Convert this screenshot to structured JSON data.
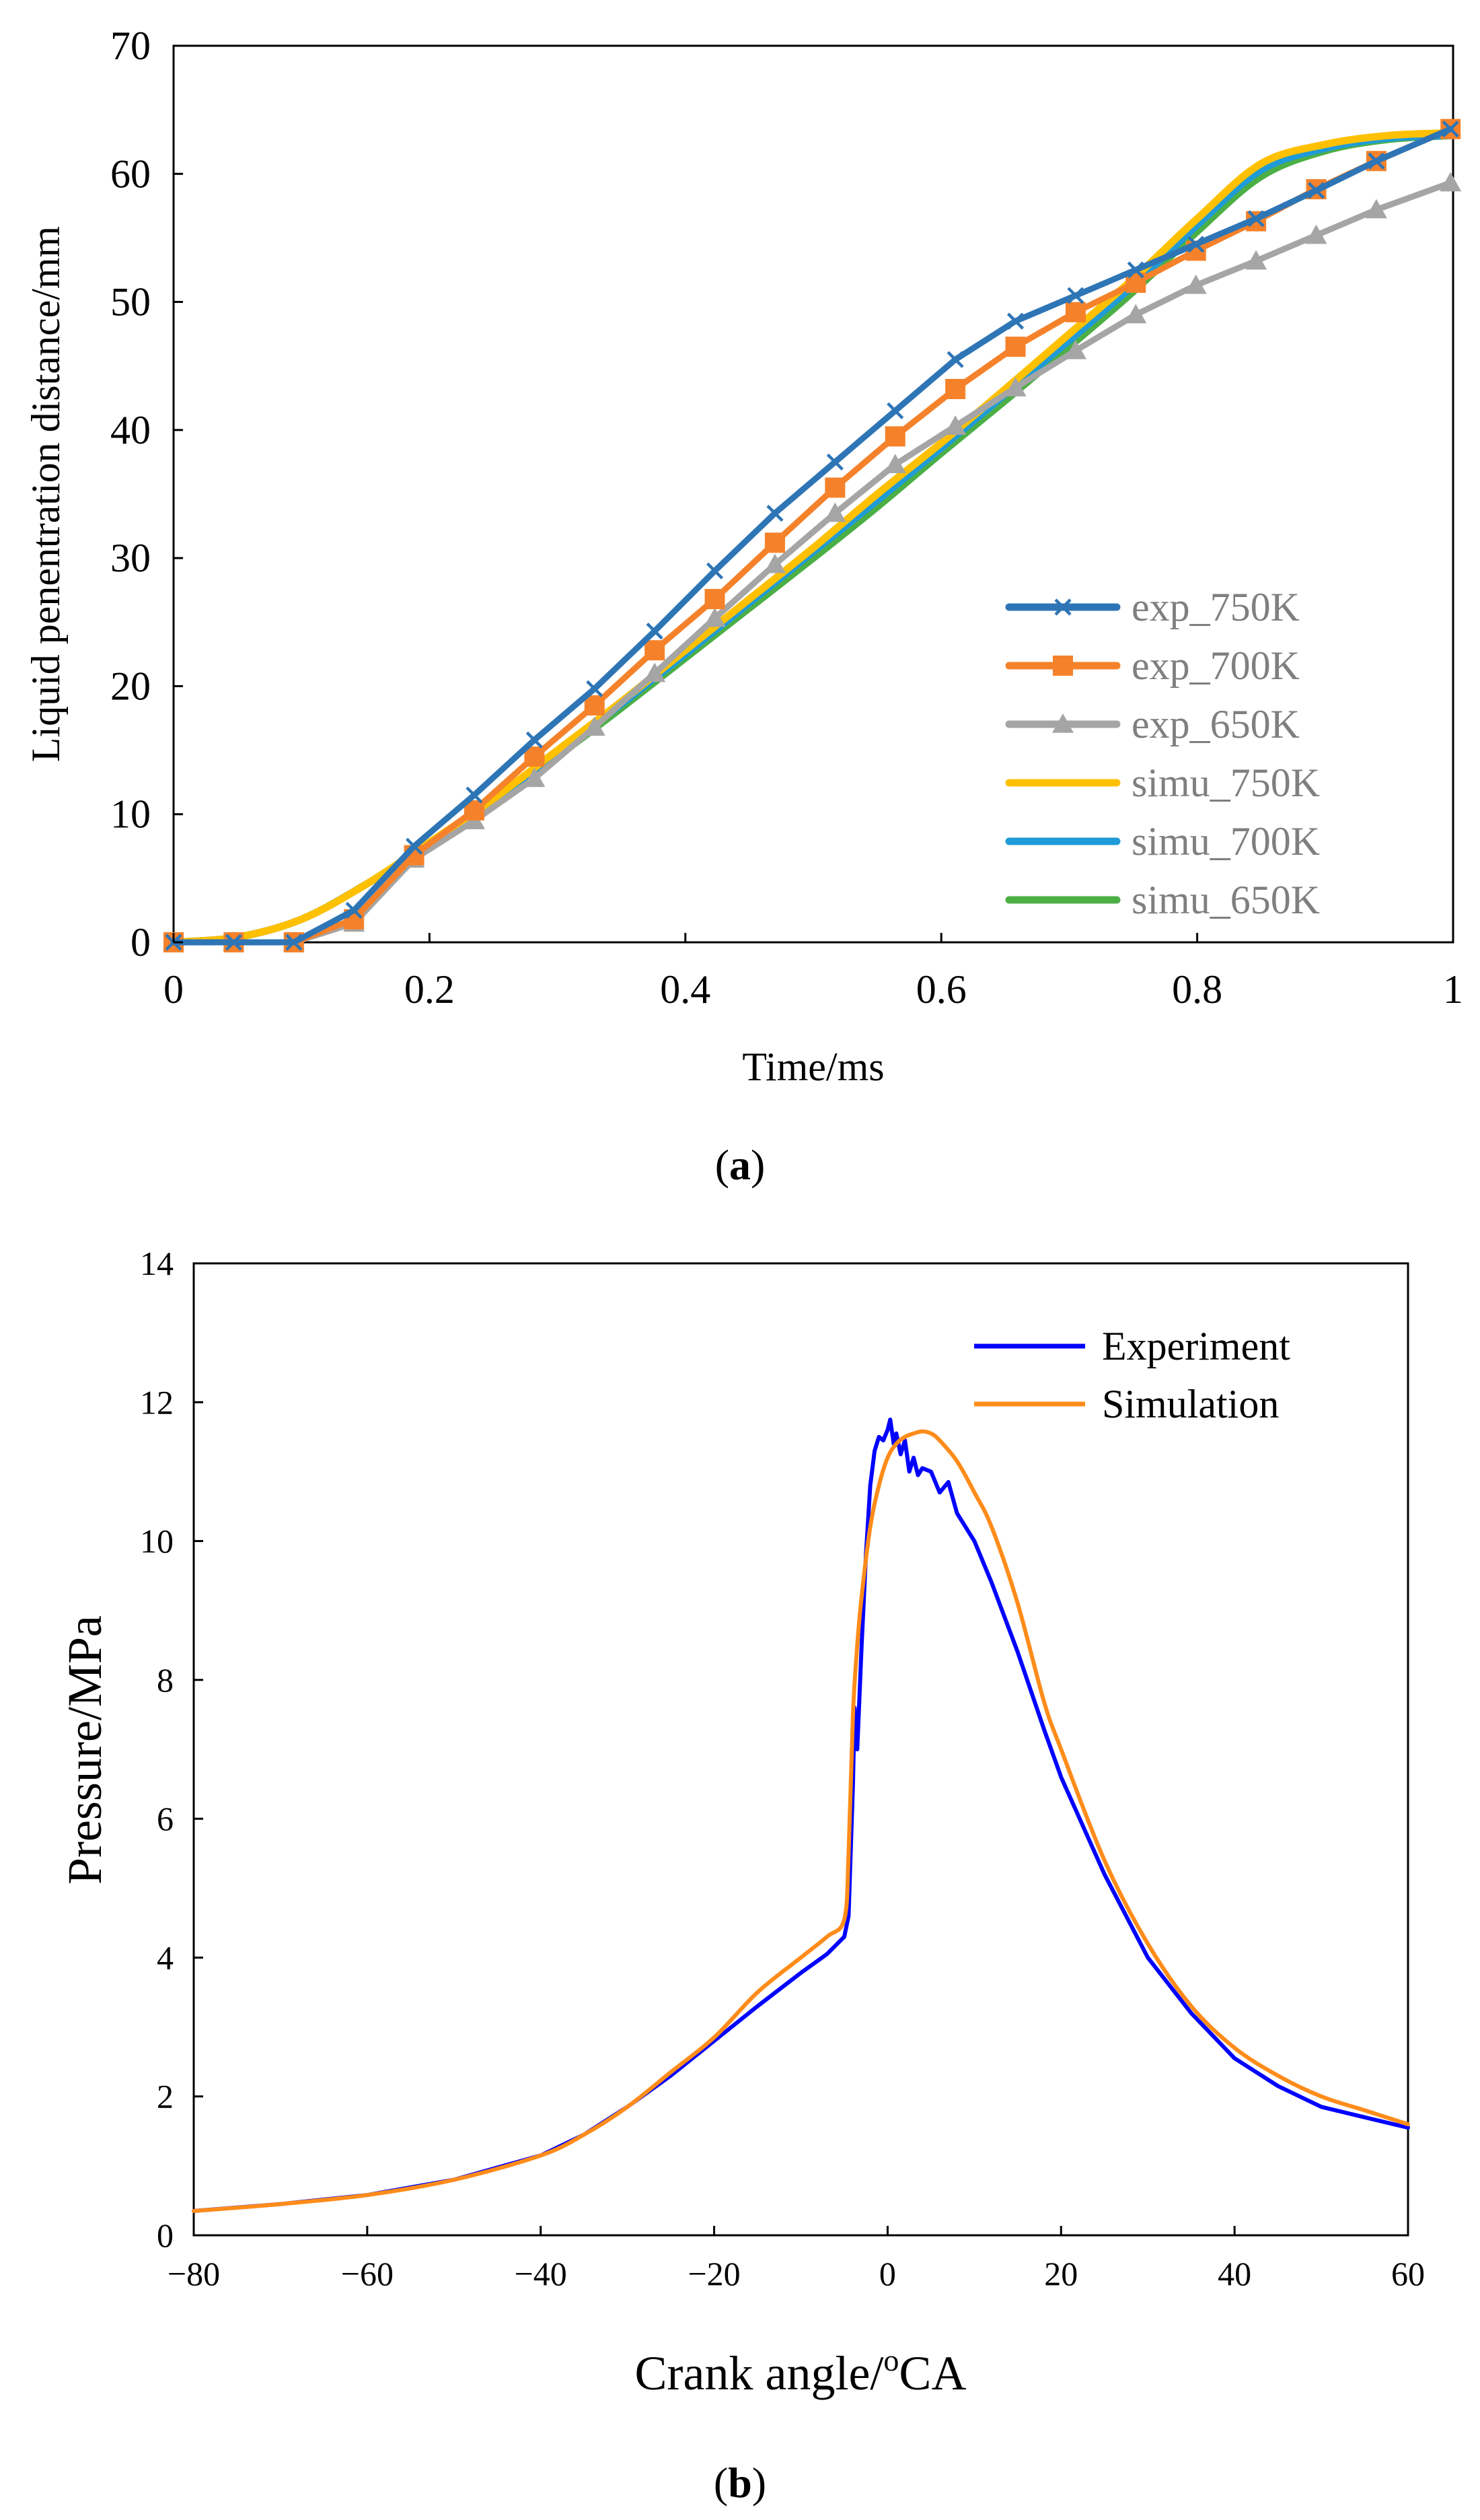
{
  "chart_data": [
    {
      "type": "line",
      "panel_label": "a",
      "title": "",
      "xlabel": "Time/ms",
      "ylabel": "Liquid penentration distance/mm",
      "xlim": [
        0,
        1
      ],
      "ylim": [
        0,
        70
      ],
      "xticks": [
        0,
        0.2,
        0.4,
        0.6,
        0.8,
        1
      ],
      "xtick_labels": [
        "0",
        "0.2",
        "0.4",
        "0.6",
        "0.8",
        "1"
      ],
      "yticks": [
        0,
        10,
        20,
        30,
        40,
        50,
        60,
        70
      ],
      "ytick_labels": [
        "0",
        "10",
        "20",
        "30",
        "40",
        "50",
        "60",
        "70"
      ],
      "grid": false,
      "legend_position": "bottom-right",
      "series": [
        {
          "name": "exp_750K",
          "color": "#2e75b6",
          "marker": "x",
          "text_color": "#7f7f7f",
          "x": [
            0,
            0.047,
            0.094,
            0.141,
            0.188,
            0.235,
            0.282,
            0.329,
            0.376,
            0.423,
            0.47,
            0.517,
            0.564,
            0.611,
            0.658,
            0.705,
            0.752,
            0.799,
            0.846,
            0.893,
            0.94,
            0.998
          ],
          "y": [
            0,
            0,
            0,
            2.5,
            7.5,
            11.5,
            15.8,
            19.8,
            24.3,
            29,
            33.5,
            37.5,
            41.5,
            45.5,
            48.5,
            50.5,
            52.5,
            54.5,
            56.5,
            58.7,
            61,
            63.5
          ]
        },
        {
          "name": "exp_700K",
          "color": "#f5822a",
          "marker": "square",
          "text_color": "#7f7f7f",
          "x": [
            0,
            0.047,
            0.094,
            0.141,
            0.188,
            0.235,
            0.282,
            0.329,
            0.376,
            0.423,
            0.47,
            0.517,
            0.564,
            0.611,
            0.658,
            0.705,
            0.752,
            0.799,
            0.846,
            0.893,
            0.94,
            0.998
          ],
          "y": [
            0,
            0,
            0,
            1.8,
            6.8,
            10.3,
            14.5,
            18.5,
            22.8,
            26.8,
            31.2,
            35.5,
            39.5,
            43.2,
            46.5,
            49.2,
            51.5,
            54,
            56.3,
            58.8,
            61,
            63.5
          ]
        },
        {
          "name": "exp_650K",
          "color": "#a5a5a5",
          "marker": "triangle",
          "text_color": "#7f7f7f",
          "x": [
            0,
            0.047,
            0.094,
            0.141,
            0.188,
            0.235,
            0.282,
            0.329,
            0.376,
            0.423,
            0.47,
            0.517,
            0.564,
            0.611,
            0.658,
            0.705,
            0.752,
            0.799,
            0.846,
            0.893,
            0.94,
            0.998
          ],
          "y": [
            0,
            0,
            0,
            1.5,
            6.5,
            9.5,
            12.8,
            16.8,
            21,
            25.3,
            29.5,
            33.5,
            37.3,
            40.3,
            43.3,
            46.2,
            49,
            51.3,
            53.2,
            55.2,
            57.2,
            59.3
          ]
        },
        {
          "name": "simu_750K",
          "color": "#ffc000",
          "marker": "none",
          "text_color": "#7f7f7f",
          "x": [
            0,
            0.05,
            0.1,
            0.15,
            0.2,
            0.25,
            0.3,
            0.35,
            0.4,
            0.45,
            0.5,
            0.55,
            0.6,
            0.65,
            0.7,
            0.75,
            0.8,
            0.85,
            0.9,
            0.95,
            1.0
          ],
          "y": [
            0,
            0.4,
            1.8,
            4.5,
            7.8,
            11.2,
            15,
            18.8,
            22.8,
            26.8,
            30.8,
            35,
            39,
            43.2,
            47.5,
            51.8,
            56.5,
            60.8,
            62.3,
            63,
            63.2
          ]
        },
        {
          "name": "simu_700K",
          "color": "#1f9bd7",
          "marker": "none",
          "text_color": "#7f7f7f",
          "x": [
            0,
            0.05,
            0.1,
            0.15,
            0.2,
            0.25,
            0.3,
            0.35,
            0.4,
            0.45,
            0.5,
            0.55,
            0.6,
            0.65,
            0.7,
            0.75,
            0.8,
            0.85,
            0.9,
            0.95,
            1.0
          ],
          "y": [
            0,
            0.4,
            1.8,
            4.5,
            7.7,
            11,
            14.8,
            18.6,
            22.5,
            26.5,
            30.5,
            34.5,
            38.6,
            42.8,
            47,
            51.3,
            56,
            60.3,
            62,
            62.8,
            63
          ]
        },
        {
          "name": "simu_650K",
          "color": "#4caf45",
          "marker": "none",
          "text_color": "#7f7f7f",
          "x": [
            0,
            0.05,
            0.1,
            0.15,
            0.2,
            0.25,
            0.3,
            0.35,
            0.4,
            0.45,
            0.5,
            0.55,
            0.6,
            0.65,
            0.7,
            0.75,
            0.8,
            0.85,
            0.9,
            0.95,
            1.0
          ],
          "y": [
            0,
            0.4,
            1.8,
            4.5,
            7.6,
            10.8,
            14.5,
            18.3,
            22.2,
            26.1,
            30,
            34,
            38.2,
            42.3,
            46.5,
            50.8,
            55.5,
            59.8,
            61.8,
            62.7,
            63
          ]
        }
      ]
    },
    {
      "type": "line",
      "panel_label": "b",
      "title": "",
      "xlabel": "Crank angle/",
      "xlabel_superscript": "o",
      "xlabel_suffix": "CA",
      "ylabel": "Pressure/MPa",
      "xlim": [
        -80,
        60
      ],
      "ylim": [
        0,
        14
      ],
      "xticks": [
        -80,
        -60,
        -40,
        -20,
        0,
        20,
        40,
        60
      ],
      "xtick_labels": [
        "−80",
        "−60",
        "−40",
        "−20",
        "0",
        "20",
        "40",
        "60"
      ],
      "yticks": [
        0,
        2,
        4,
        6,
        8,
        10,
        12,
        14
      ],
      "ytick_labels": [
        "0",
        "2",
        "4",
        "6",
        "8",
        "10",
        "12",
        "14"
      ],
      "grid": false,
      "legend_position": "top-right",
      "series": [
        {
          "name": "Experiment",
          "color": "#0000ff",
          "x": [
            -80,
            -70,
            -60,
            -50,
            -40,
            -35,
            -30,
            -25,
            -20,
            -15,
            -10,
            -7,
            -5,
            -4.5,
            -4,
            -3.8,
            -3.5,
            -3,
            -2.5,
            -2,
            -1.5,
            -1,
            -0.5,
            0,
            0.3,
            0.7,
            1,
            1.5,
            2,
            2.5,
            3,
            3.5,
            4,
            5,
            6,
            7,
            8,
            10,
            12,
            15,
            18,
            20,
            25,
            30,
            35,
            40,
            45,
            50,
            55,
            60
          ],
          "y": [
            0.35,
            0.45,
            0.58,
            0.8,
            1.15,
            1.45,
            1.85,
            2.3,
            2.8,
            3.3,
            3.78,
            4.05,
            4.3,
            4.6,
            6.5,
            7.6,
            7.0,
            8.5,
            9.8,
            10.8,
            11.3,
            11.5,
            11.45,
            11.6,
            11.75,
            11.4,
            11.55,
            11.25,
            11.45,
            11.0,
            11.2,
            10.95,
            11.05,
            11.0,
            10.7,
            10.85,
            10.4,
            10.0,
            9.4,
            8.4,
            7.3,
            6.6,
            5.2,
            4.0,
            3.2,
            2.55,
            2.15,
            1.85,
            1.7,
            1.55
          ]
        },
        {
          "name": "Simulation",
          "color": "#ff8c1a",
          "x": [
            -80,
            -70,
            -60,
            -50,
            -40,
            -35,
            -30,
            -25,
            -20,
            -15,
            -10,
            -7,
            -5,
            -4.5,
            -4,
            -3.5,
            -3,
            -2,
            -1,
            0,
            1,
            2,
            3,
            4,
            5,
            6,
            8,
            10,
            12,
            15,
            18,
            20,
            25,
            30,
            35,
            40,
            45,
            50,
            55,
            60
          ],
          "y": [
            0.35,
            0.45,
            0.58,
            0.8,
            1.15,
            1.45,
            1.85,
            2.35,
            2.85,
            3.5,
            4.0,
            4.3,
            4.55,
            5.5,
            7.5,
            8.5,
            9.2,
            10.2,
            10.8,
            11.2,
            11.4,
            11.5,
            11.55,
            11.58,
            11.55,
            11.45,
            11.15,
            10.7,
            10.2,
            9.1,
            7.7,
            7.0,
            5.4,
            4.2,
            3.3,
            2.7,
            2.3,
            2.0,
            1.8,
            1.6
          ]
        }
      ]
    }
  ]
}
